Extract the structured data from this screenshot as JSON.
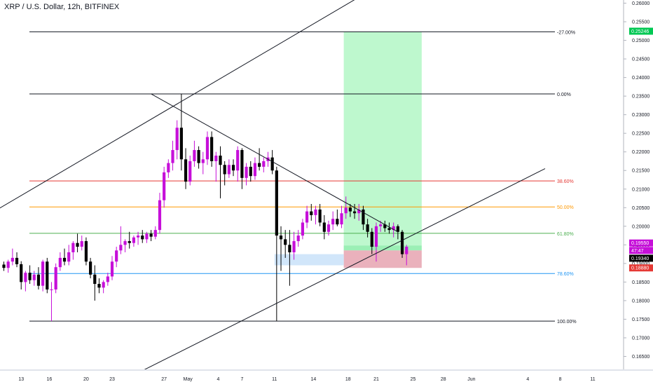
{
  "title": "XRP / U.S. Dollar, 12h, BITFINEX",
  "colors": {
    "bull": "#c60fd9",
    "bear": "#000000",
    "profit_zone": "#b7f7c9",
    "loss_zone": "#e8a9b5",
    "entry_zone": "#cce3fa",
    "fib_red": "#e53935",
    "fib_orange": "#ff9800",
    "fib_green": "#4caf50",
    "fib_blue": "#2196f3",
    "trendline": "#131722"
  },
  "chart_data": {
    "type": "candlestick",
    "title": "XRP / U.S. Dollar, 12h, BITFINEX",
    "ylim": [
      0.161,
      0.2615
    ],
    "y_ticks": [
      "0.26000",
      "0.25500",
      "0.25000",
      "0.24500",
      "0.24000",
      "0.23500",
      "0.23000",
      "0.22500",
      "0.22000",
      "0.21500",
      "0.21000",
      "0.20500",
      "0.20000",
      "0.19500",
      "0.19000",
      "0.18500",
      "0.18000",
      "0.17500",
      "0.17000",
      "0.16500"
    ],
    "x_ticks": [
      "13",
      "16",
      "20",
      "23",
      "27",
      "May",
      "4",
      "7",
      "11",
      "14",
      "18",
      "21",
      "25",
      "28",
      "Jun",
      "4",
      "8",
      "11"
    ],
    "fib_levels": [
      {
        "label": "-27.00%",
        "value": 0.2523,
        "color_key": "trendline",
        "right_label": true
      },
      {
        "label": "0.00%",
        "value": 0.2356,
        "color_key": "trendline",
        "right_label": true
      },
      {
        "label": "38.60%",
        "value": 0.2122,
        "color_key": "fib_red",
        "right_label": true
      },
      {
        "label": "50.00%",
        "value": 0.2052,
        "color_key": "fib_orange",
        "right_label": true
      },
      {
        "label": "61.80%",
        "value": 0.1981,
        "color_key": "fib_green",
        "right_label": true
      },
      {
        "label": "78.60%",
        "value": 0.1873,
        "color_key": "fib_blue",
        "right_label": true
      },
      {
        "label": "100.00%",
        "value": 0.1745,
        "color_key": "trendline",
        "right_label": true
      }
    ],
    "price_badges": [
      {
        "label": "0.25246",
        "value": 0.25246,
        "bg": "#00c853",
        "fg": "#ffffff"
      },
      {
        "label": "0.19550",
        "value": 0.1955,
        "bg": "#c60fd9",
        "fg": "#ffffff"
      },
      {
        "label": "47:47",
        "value": 0.1935,
        "bg": "#c60fd9",
        "fg": "#ffffff"
      },
      {
        "label": "0.19340",
        "value": 0.1914,
        "bg": "#000000",
        "fg": "#ffffff"
      },
      {
        "label": "0.18880",
        "value": 0.1888,
        "bg": "#e53935",
        "fg": "#ffffff"
      }
    ],
    "candles": [
      {
        "o": 0.1897,
        "h": 0.1905,
        "l": 0.188,
        "c": 0.1888
      },
      {
        "o": 0.1888,
        "h": 0.191,
        "l": 0.1875,
        "c": 0.1905
      },
      {
        "o": 0.1905,
        "h": 0.194,
        "l": 0.1895,
        "c": 0.1915
      },
      {
        "o": 0.1915,
        "h": 0.193,
        "l": 0.189,
        "c": 0.1898
      },
      {
        "o": 0.1898,
        "h": 0.1906,
        "l": 0.183,
        "c": 0.185
      },
      {
        "o": 0.185,
        "h": 0.188,
        "l": 0.1825,
        "c": 0.1875
      },
      {
        "o": 0.1875,
        "h": 0.1895,
        "l": 0.1845,
        "c": 0.1855
      },
      {
        "o": 0.1855,
        "h": 0.188,
        "l": 0.184,
        "c": 0.187
      },
      {
        "o": 0.187,
        "h": 0.189,
        "l": 0.183,
        "c": 0.184
      },
      {
        "o": 0.184,
        "h": 0.191,
        "l": 0.1825,
        "c": 0.1905
      },
      {
        "o": 0.1905,
        "h": 0.1915,
        "l": 0.182,
        "c": 0.183
      },
      {
        "o": 0.183,
        "h": 0.185,
        "l": 0.1745,
        "c": 0.183
      },
      {
        "o": 0.183,
        "h": 0.19,
        "l": 0.182,
        "c": 0.189
      },
      {
        "o": 0.189,
        "h": 0.193,
        "l": 0.188,
        "c": 0.1915
      },
      {
        "o": 0.1915,
        "h": 0.194,
        "l": 0.1895,
        "c": 0.1905
      },
      {
        "o": 0.1905,
        "h": 0.195,
        "l": 0.1895,
        "c": 0.193
      },
      {
        "o": 0.193,
        "h": 0.196,
        "l": 0.191,
        "c": 0.1955
      },
      {
        "o": 0.1955,
        "h": 0.198,
        "l": 0.193,
        "c": 0.1945
      },
      {
        "o": 0.1945,
        "h": 0.1975,
        "l": 0.1935,
        "c": 0.196
      },
      {
        "o": 0.196,
        "h": 0.197,
        "l": 0.1895,
        "c": 0.1905
      },
      {
        "o": 0.1905,
        "h": 0.1915,
        "l": 0.186,
        "c": 0.187
      },
      {
        "o": 0.187,
        "h": 0.1895,
        "l": 0.18,
        "c": 0.1845
      },
      {
        "o": 0.1845,
        "h": 0.186,
        "l": 0.182,
        "c": 0.1835
      },
      {
        "o": 0.1835,
        "h": 0.1855,
        "l": 0.182,
        "c": 0.185
      },
      {
        "o": 0.185,
        "h": 0.1875,
        "l": 0.184,
        "c": 0.1865
      },
      {
        "o": 0.1865,
        "h": 0.192,
        "l": 0.1855,
        "c": 0.1905
      },
      {
        "o": 0.1905,
        "h": 0.1945,
        "l": 0.189,
        "c": 0.1935
      },
      {
        "o": 0.1935,
        "h": 0.2,
        "l": 0.1925,
        "c": 0.195
      },
      {
        "o": 0.195,
        "h": 0.1965,
        "l": 0.193,
        "c": 0.196
      },
      {
        "o": 0.196,
        "h": 0.1985,
        "l": 0.194,
        "c": 0.1955
      },
      {
        "o": 0.1955,
        "h": 0.1975,
        "l": 0.1945,
        "c": 0.197
      },
      {
        "o": 0.197,
        "h": 0.1985,
        "l": 0.195,
        "c": 0.1975
      },
      {
        "o": 0.1975,
        "h": 0.199,
        "l": 0.1955,
        "c": 0.1965
      },
      {
        "o": 0.1965,
        "h": 0.1985,
        "l": 0.1955,
        "c": 0.198
      },
      {
        "o": 0.198,
        "h": 0.199,
        "l": 0.196,
        "c": 0.1972
      },
      {
        "o": 0.1972,
        "h": 0.2,
        "l": 0.1965,
        "c": 0.199
      },
      {
        "o": 0.199,
        "h": 0.209,
        "l": 0.198,
        "c": 0.207
      },
      {
        "o": 0.207,
        "h": 0.216,
        "l": 0.205,
        "c": 0.2145
      },
      {
        "o": 0.2145,
        "h": 0.218,
        "l": 0.213,
        "c": 0.217
      },
      {
        "o": 0.217,
        "h": 0.223,
        "l": 0.215,
        "c": 0.2205
      },
      {
        "o": 0.2205,
        "h": 0.2285,
        "l": 0.218,
        "c": 0.2265
      },
      {
        "o": 0.2265,
        "h": 0.2356,
        "l": 0.215,
        "c": 0.218
      },
      {
        "o": 0.218,
        "h": 0.221,
        "l": 0.21,
        "c": 0.212
      },
      {
        "o": 0.212,
        "h": 0.219,
        "l": 0.211,
        "c": 0.2175
      },
      {
        "o": 0.2175,
        "h": 0.223,
        "l": 0.216,
        "c": 0.2205
      },
      {
        "o": 0.2205,
        "h": 0.2215,
        "l": 0.2155,
        "c": 0.217
      },
      {
        "o": 0.217,
        "h": 0.22,
        "l": 0.214,
        "c": 0.218
      },
      {
        "o": 0.218,
        "h": 0.2255,
        "l": 0.2165,
        "c": 0.224
      },
      {
        "o": 0.224,
        "h": 0.2255,
        "l": 0.216,
        "c": 0.2175
      },
      {
        "o": 0.2175,
        "h": 0.22,
        "l": 0.212,
        "c": 0.219
      },
      {
        "o": 0.219,
        "h": 0.2215,
        "l": 0.2075,
        "c": 0.2165
      },
      {
        "o": 0.2165,
        "h": 0.2175,
        "l": 0.211,
        "c": 0.214
      },
      {
        "o": 0.214,
        "h": 0.218,
        "l": 0.213,
        "c": 0.2165
      },
      {
        "o": 0.2165,
        "h": 0.218,
        "l": 0.2135,
        "c": 0.215
      },
      {
        "o": 0.215,
        "h": 0.2215,
        "l": 0.212,
        "c": 0.2205
      },
      {
        "o": 0.2205,
        "h": 0.221,
        "l": 0.21,
        "c": 0.213
      },
      {
        "o": 0.213,
        "h": 0.217,
        "l": 0.211,
        "c": 0.216
      },
      {
        "o": 0.216,
        "h": 0.2175,
        "l": 0.212,
        "c": 0.2135
      },
      {
        "o": 0.2135,
        "h": 0.2185,
        "l": 0.2125,
        "c": 0.217
      },
      {
        "o": 0.217,
        "h": 0.221,
        "l": 0.215,
        "c": 0.216
      },
      {
        "o": 0.216,
        "h": 0.2185,
        "l": 0.2145,
        "c": 0.2175
      },
      {
        "o": 0.2175,
        "h": 0.22,
        "l": 0.216,
        "c": 0.2185
      },
      {
        "o": 0.2185,
        "h": 0.2205,
        "l": 0.214,
        "c": 0.215
      },
      {
        "o": 0.215,
        "h": 0.216,
        "l": 0.1745,
        "c": 0.1975
      },
      {
        "o": 0.1975,
        "h": 0.2,
        "l": 0.188,
        "c": 0.1965
      },
      {
        "o": 0.1965,
        "h": 0.199,
        "l": 0.1915,
        "c": 0.195
      },
      {
        "o": 0.195,
        "h": 0.199,
        "l": 0.184,
        "c": 0.193
      },
      {
        "o": 0.193,
        "h": 0.1985,
        "l": 0.191,
        "c": 0.196
      },
      {
        "o": 0.196,
        "h": 0.199,
        "l": 0.1945,
        "c": 0.1975
      },
      {
        "o": 0.1975,
        "h": 0.202,
        "l": 0.1965,
        "c": 0.201
      },
      {
        "o": 0.201,
        "h": 0.2055,
        "l": 0.1995,
        "c": 0.204
      },
      {
        "o": 0.204,
        "h": 0.206,
        "l": 0.2015,
        "c": 0.203
      },
      {
        "o": 0.203,
        "h": 0.2055,
        "l": 0.2005,
        "c": 0.2045
      },
      {
        "o": 0.2045,
        "h": 0.206,
        "l": 0.2,
        "c": 0.201
      },
      {
        "o": 0.201,
        "h": 0.203,
        "l": 0.1965,
        "c": 0.1985
      },
      {
        "o": 0.1985,
        "h": 0.2015,
        "l": 0.1975,
        "c": 0.2005
      },
      {
        "o": 0.2005,
        "h": 0.204,
        "l": 0.199,
        "c": 0.202
      },
      {
        "o": 0.202,
        "h": 0.2045,
        "l": 0.2,
        "c": 0.2005
      },
      {
        "o": 0.2005,
        "h": 0.2055,
        "l": 0.1995,
        "c": 0.2035
      },
      {
        "o": 0.2035,
        "h": 0.208,
        "l": 0.202,
        "c": 0.205
      },
      {
        "o": 0.205,
        "h": 0.206,
        "l": 0.2025,
        "c": 0.204
      },
      {
        "o": 0.204,
        "h": 0.206,
        "l": 0.202,
        "c": 0.2035
      },
      {
        "o": 0.2035,
        "h": 0.206,
        "l": 0.2015,
        "c": 0.2045
      },
      {
        "o": 0.2045,
        "h": 0.2055,
        "l": 0.199,
        "c": 0.2005
      },
      {
        "o": 0.2005,
        "h": 0.202,
        "l": 0.197,
        "c": 0.1985
      },
      {
        "o": 0.1985,
        "h": 0.1995,
        "l": 0.1925,
        "c": 0.1945
      },
      {
        "o": 0.1945,
        "h": 0.201,
        "l": 0.1905,
        "c": 0.2
      },
      {
        "o": 0.2,
        "h": 0.2015,
        "l": 0.1985,
        "c": 0.2005
      },
      {
        "o": 0.2005,
        "h": 0.2015,
        "l": 0.1985,
        "c": 0.1995
      },
      {
        "o": 0.1995,
        "h": 0.201,
        "l": 0.198,
        "c": 0.199
      },
      {
        "o": 0.199,
        "h": 0.201,
        "l": 0.197,
        "c": 0.2
      },
      {
        "o": 0.2,
        "h": 0.2005,
        "l": 0.1965,
        "c": 0.1985
      },
      {
        "o": 0.1985,
        "h": 0.199,
        "l": 0.1915,
        "c": 0.1925
      },
      {
        "o": 0.1925,
        "h": 0.195,
        "l": 0.1895,
        "c": 0.1945
      }
    ],
    "shaded_zones": [
      {
        "name": "profit-target-zone",
        "color_key": "profit_zone",
        "top": 0.2523,
        "bottom": 0.1935,
        "from_candle": 78.5,
        "to_candle": 96.5
      },
      {
        "name": "profit-target-zone-strong",
        "color_key": "profit_zone",
        "top": 0.1948,
        "bottom": 0.1935,
        "from_candle": 78.5,
        "to_candle": 96.5
      },
      {
        "name": "stop-loss-zone",
        "color_key": "loss_zone",
        "top": 0.1935,
        "bottom": 0.1888,
        "from_candle": 78.5,
        "to_candle": 96.5
      },
      {
        "name": "entry-zone",
        "color_key": "entry_zone",
        "top": 0.1925,
        "bottom": 0.1895,
        "from_candle": 62.5,
        "to_candle": 78.5
      }
    ],
    "trend_lines": [
      {
        "name": "upper-channel-line",
        "from": [
          -1.5,
          0.2045
        ],
        "to": [
          95,
          0.2705
        ]
      },
      {
        "name": "lower-channel-line",
        "from": [
          30,
          0.16
        ],
        "to": [
          125,
          0.2155
        ]
      },
      {
        "name": "descending-resistance-line",
        "from": [
          34,
          0.2356
        ],
        "to": [
          91,
          0.1985
        ]
      }
    ]
  }
}
